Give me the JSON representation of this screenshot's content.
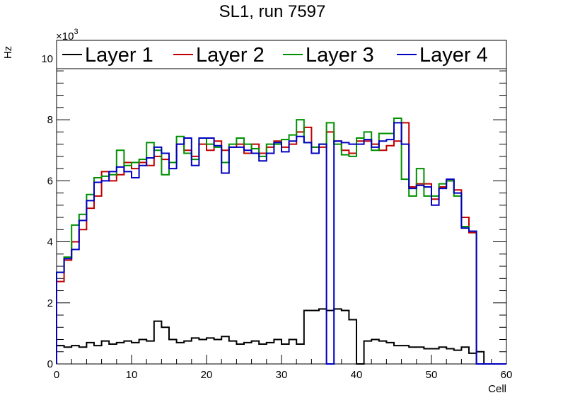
{
  "chart_data": {
    "type": "line",
    "title": "SL1, run 7597",
    "xlabel": "Cell",
    "ylabel": "Hz",
    "y_multiplier": "×10",
    "y_multiplier_exp": "3",
    "xlim": [
      0,
      60
    ],
    "ylim": [
      0,
      10.6
    ],
    "y_unit_scale": 1000,
    "x_ticks": [
      0,
      10,
      20,
      30,
      40,
      50,
      60
    ],
    "y_ticks": [
      0,
      2,
      4,
      6,
      8,
      10
    ],
    "grid": false,
    "legend_position": "top",
    "bins": 60,
    "series": [
      {
        "name": "Layer 1",
        "color": "#000000",
        "values": [
          0.6,
          0.55,
          0.6,
          0.55,
          0.7,
          0.6,
          0.75,
          0.65,
          0.7,
          0.75,
          0.7,
          0.8,
          0.75,
          1.4,
          1.2,
          0.8,
          0.7,
          0.75,
          0.85,
          0.8,
          0.85,
          0.8,
          0.9,
          0.75,
          0.65,
          0.7,
          0.75,
          0.65,
          0.7,
          0.8,
          0.65,
          0.8,
          0.65,
          1.75,
          1.75,
          1.8,
          1.75,
          1.8,
          1.75,
          1.45,
          0,
          0.75,
          0.8,
          0.75,
          0.7,
          0.6,
          0.6,
          0.55,
          0.55,
          0.5,
          0.5,
          0.55,
          0.5,
          0.45,
          0.55,
          0.35,
          0.4,
          0,
          0,
          0
        ]
      },
      {
        "name": "Layer 2",
        "color": "#c00000",
        "values": [
          2.7,
          3.4,
          4.0,
          4.4,
          5.1,
          5.5,
          6.3,
          6.0,
          6.2,
          6.6,
          6.4,
          6.6,
          6.5,
          6.8,
          6.7,
          6.6,
          7.2,
          7.0,
          6.8,
          7.2,
          7.0,
          7.3,
          7.0,
          7.1,
          7.2,
          6.9,
          7.2,
          6.9,
          7.1,
          7.3,
          7.1,
          7.2,
          7.6,
          7.75,
          7.1,
          7.1,
          7.6,
          7.3,
          7.0,
          6.9,
          7.3,
          7.3,
          7.2,
          7.0,
          7.15,
          7.3,
          7.9,
          5.8,
          5.9,
          5.9,
          5.4,
          5.8,
          6.0,
          5.7,
          4.8,
          4.3,
          0,
          0,
          0,
          0
        ]
      },
      {
        "name": "Layer 3",
        "color": "#009000",
        "values": [
          3.0,
          3.5,
          4.55,
          4.9,
          5.55,
          6.1,
          6.15,
          6.2,
          7.0,
          6.5,
          6.6,
          6.7,
          7.25,
          7.0,
          6.2,
          6.6,
          7.45,
          6.9,
          6.7,
          7.4,
          7.2,
          7.1,
          6.6,
          7.2,
          7.4,
          7.2,
          7.05,
          6.8,
          7.2,
          7.2,
          7.35,
          7.5,
          8.0,
          7.25,
          7.1,
          7.2,
          7.9,
          7.2,
          6.85,
          6.8,
          7.4,
          7.6,
          7.0,
          7.55,
          7.55,
          8.05,
          6.05,
          5.5,
          6.4,
          5.5,
          5.5,
          5.9,
          6.0,
          5.5,
          4.5,
          4.35,
          0,
          0,
          0,
          0
        ]
      },
      {
        "name": "Layer 4",
        "color": "#0000c0",
        "values": [
          3.0,
          3.45,
          3.75,
          4.7,
          5.35,
          5.95,
          6.0,
          6.3,
          6.45,
          6.3,
          6.1,
          6.5,
          6.75,
          7.1,
          6.9,
          6.4,
          7.2,
          7.4,
          6.5,
          7.4,
          7.4,
          7.15,
          6.25,
          7.1,
          7.1,
          7.0,
          6.9,
          6.65,
          6.9,
          7.25,
          6.95,
          7.3,
          7.45,
          7.25,
          6.9,
          7.2,
          0,
          7.3,
          7.25,
          7.2,
          7.2,
          7.35,
          7.1,
          7.3,
          7.35,
          7.9,
          7.2,
          5.75,
          5.85,
          5.8,
          5.2,
          5.75,
          6.05,
          5.6,
          4.45,
          4.35,
          0,
          0,
          0,
          0
        ]
      }
    ]
  }
}
